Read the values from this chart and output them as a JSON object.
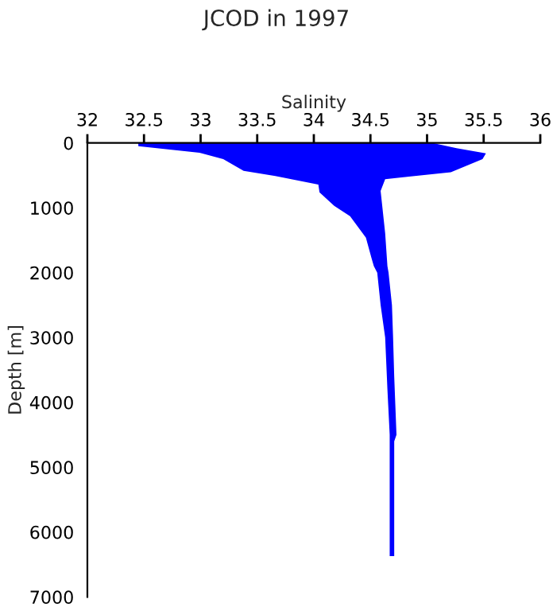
{
  "chart_data": {
    "type": "area",
    "title": "JCOD in 1997",
    "xlabel": "Salinity",
    "ylabel": "Depth [m]",
    "series": [
      {
        "color": "#0000ff",
        "x": [
          32.45,
          32.45,
          32.99,
          33.2,
          33.38,
          33.66,
          34.04,
          34.05,
          34.18,
          34.32,
          34.46,
          34.51,
          34.53,
          34.56,
          34.59,
          34.63,
          34.65,
          34.67,
          34.67,
          34.67,
          34.71,
          34.71,
          34.73,
          34.71,
          34.7,
          34.69,
          34.66,
          34.65,
          34.63,
          34.59,
          34.63,
          34.84,
          35.21,
          35.49,
          35.52,
          35.26,
          35.05
        ],
        "values": [
          0,
          50,
          150,
          250,
          430,
          510,
          640,
          760,
          970,
          1130,
          1460,
          1780,
          1900,
          2000,
          2500,
          3000,
          3800,
          4500,
          6300,
          6370,
          6370,
          4600,
          4500,
          3600,
          3000,
          2500,
          2000,
          1900,
          1390,
          740,
          560,
          520,
          450,
          250,
          160,
          80,
          0
        ]
      }
    ],
    "xlim": [
      32,
      36
    ],
    "xticks": [
      32,
      32.5,
      33,
      33.5,
      34,
      34.5,
      35,
      35.5,
      36
    ],
    "ylim": [
      7000,
      0
    ],
    "yticks": [
      0,
      1000,
      2000,
      3000,
      4000,
      5000,
      6000,
      7000
    ],
    "grid": false
  }
}
